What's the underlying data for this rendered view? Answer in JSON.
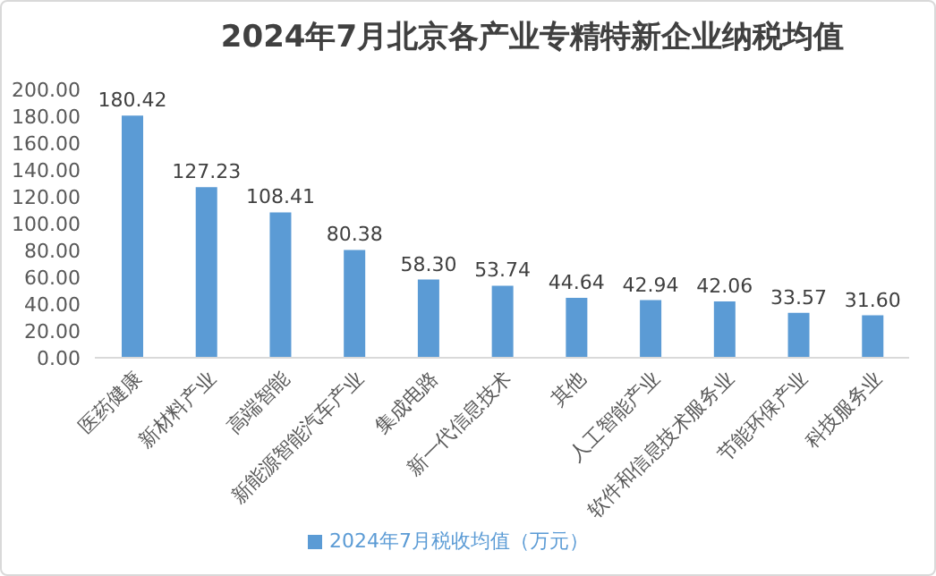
{
  "chart_data": {
    "type": "bar",
    "title": "2024年7月北京各产业专精特新企业纳税均值",
    "categories": [
      "医药健康",
      "新材料产业",
      "高端智能",
      "新能源智能汽车产业",
      "集成电路",
      "新一代信息技术",
      "其他",
      "人工智能产业",
      "软件和信息技术服务业",
      "节能环保产业",
      "科技服务业"
    ],
    "series": [
      {
        "name": "2024年7月税收均值（万元）",
        "color": "#5b9bd5",
        "values": [
          180.42,
          127.23,
          108.41,
          80.38,
          58.3,
          53.74,
          44.64,
          42.94,
          42.06,
          33.57,
          31.6
        ],
        "value_labels": [
          "180.42",
          "127.23",
          "108.41",
          "80.38",
          "58.30",
          "53.74",
          "44.64",
          "42.94",
          "42.06",
          "33.57",
          "31.60"
        ]
      }
    ],
    "ylim": [
      0,
      200
    ],
    "yticks": [
      {
        "value": 0,
        "label": "0.00"
      },
      {
        "value": 20,
        "label": "20.00"
      },
      {
        "value": 40,
        "label": "40.00"
      },
      {
        "value": 60,
        "label": "60.00"
      },
      {
        "value": 80,
        "label": "80.00"
      },
      {
        "value": 100,
        "label": "100.00"
      },
      {
        "value": 120,
        "label": "120.00"
      },
      {
        "value": 140,
        "label": "140.00"
      },
      {
        "value": 160,
        "label": "160.00"
      },
      {
        "value": 180,
        "label": "180.00"
      },
      {
        "value": 200,
        "label": "200.00"
      }
    ],
    "legend": "bottom"
  }
}
